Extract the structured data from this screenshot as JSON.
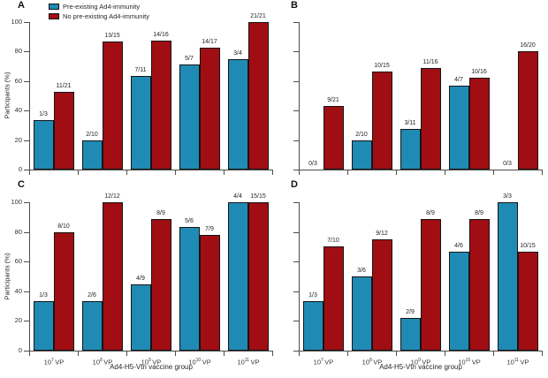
{
  "chart_data": {
    "type": "bar",
    "ylabel": "Participants (%)",
    "xlabel": "Ad4-H5-Vtn vaccine group",
    "ylim": [
      0,
      100
    ],
    "yticks": [
      0,
      20,
      40,
      60,
      80,
      100
    ],
    "grid": false,
    "legend_position": "top-left of panel A",
    "categories": [
      {
        "base": "10",
        "exp": "7",
        "suffix": "VP"
      },
      {
        "base": "10",
        "exp": "8",
        "suffix": "VP"
      },
      {
        "base": "10",
        "exp": "9",
        "suffix": "VP"
      },
      {
        "base": "10",
        "exp": "10",
        "suffix": "VP"
      },
      {
        "base": "10",
        "exp": "11",
        "suffix": "VP"
      }
    ],
    "colors": {
      "pre_existing": "#1f8bb4",
      "no_pre_existing": "#a00e13",
      "axis": "#4d4d4d",
      "text": "#262626"
    },
    "panels": [
      {
        "label": "A",
        "series": [
          {
            "name": "Pre-existing Ad4-immunity",
            "fractions": [
              "1/3",
              "2/10",
              "7/11",
              "5/7",
              "3/4"
            ],
            "values": [
              33.3,
              20,
              63.6,
              71.4,
              75
            ]
          },
          {
            "name": "No pre-existing Ad4-immunity",
            "fractions": [
              "11/21",
              "13/15",
              "14/16",
              "14/17",
              "21/21"
            ],
            "values": [
              52.4,
              86.7,
              87.5,
              82.4,
              100
            ]
          }
        ]
      },
      {
        "label": "B",
        "series": [
          {
            "name": "Pre-existing Ad4-immunity",
            "fractions": [
              "0/3",
              "2/10",
              "3/11",
              "4/7",
              "0/3"
            ],
            "values": [
              0,
              20,
              27.3,
              57.1,
              0
            ]
          },
          {
            "name": "No pre-existing Ad4-immunity",
            "fractions": [
              "9/21",
              "10/15",
              "11/16",
              "10/16",
              "16/20"
            ],
            "values": [
              42.9,
              66.7,
              68.8,
              62.5,
              80
            ]
          }
        ]
      },
      {
        "label": "C",
        "series": [
          {
            "name": "Pre-existing Ad4-immunity",
            "fractions": [
              "1/3",
              "2/6",
              "4/9",
              "5/6",
              "4/4"
            ],
            "values": [
              33.3,
              33.3,
              44.4,
              83.3,
              100
            ]
          },
          {
            "name": "No pre-existing Ad4-immunity",
            "fractions": [
              "8/10",
              "12/12",
              "8/9",
              "7/9",
              "15/15"
            ],
            "values": [
              80,
              100,
              88.9,
              77.8,
              100
            ]
          }
        ]
      },
      {
        "label": "D",
        "series": [
          {
            "name": "Pre-existing Ad4-immunity",
            "fractions": [
              "1/3",
              "3/6",
              "2/9",
              "4/6",
              "3/3"
            ],
            "values": [
              33.3,
              50,
              22.2,
              66.7,
              100
            ]
          },
          {
            "name": "No pre-existing Ad4-immunity",
            "fractions": [
              "7/10",
              "9/12",
              "8/9",
              "8/9",
              "10/15"
            ],
            "values": [
              70,
              75,
              88.9,
              88.9,
              66.7
            ]
          }
        ]
      }
    ]
  }
}
